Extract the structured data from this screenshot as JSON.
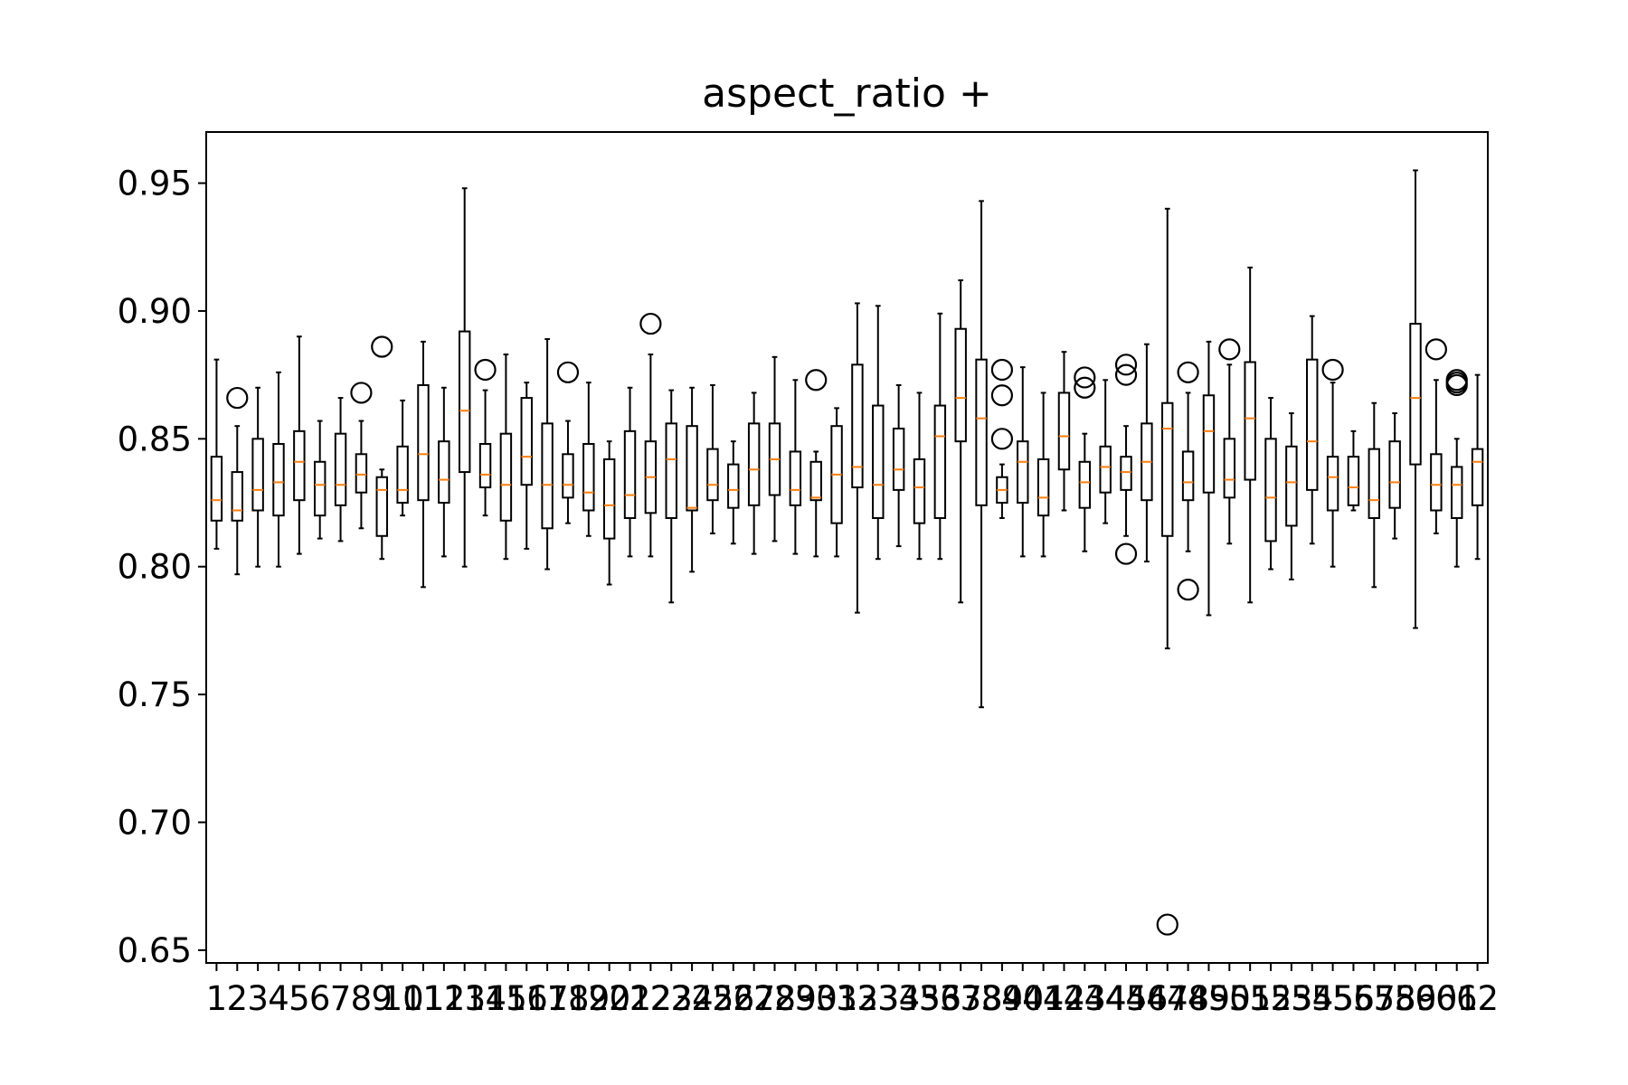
{
  "chart_data": {
    "type": "boxplot",
    "title": "aspect_ratio +",
    "xlabel": "",
    "ylabel": "",
    "ylim": [
      0.645,
      0.97
    ],
    "yticks": [
      0.65,
      0.7,
      0.75,
      0.8,
      0.85,
      0.9,
      0.95
    ],
    "ytick_labels": [
      "0.65",
      "0.70",
      "0.75",
      "0.80",
      "0.85",
      "0.90",
      "0.95"
    ],
    "xticks": [
      1,
      2,
      3,
      4,
      5,
      6,
      7,
      8,
      9,
      10,
      11,
      12,
      13,
      14,
      15,
      16,
      17,
      18,
      19,
      20,
      21,
      22,
      23,
      24,
      25,
      26,
      27,
      28,
      29,
      30,
      31,
      32,
      33,
      34,
      35,
      36,
      37,
      38,
      39,
      40,
      41,
      42,
      43,
      44,
      45,
      46,
      47,
      48,
      49,
      50,
      51,
      52,
      53,
      54,
      55,
      56,
      57,
      58,
      59,
      60,
      61,
      62
    ],
    "xtick_labels": [
      "1",
      "2",
      "3",
      "4",
      "5",
      "6",
      "7",
      "8",
      "9",
      "10",
      "11",
      "12",
      "13",
      "14",
      "15",
      "16",
      "17",
      "18",
      "19",
      "20",
      "21",
      "22",
      "23",
      "24",
      "25",
      "26",
      "27",
      "28",
      "29",
      "30",
      "31",
      "32",
      "33",
      "34",
      "35",
      "36",
      "37",
      "38",
      "39",
      "40",
      "41",
      "42",
      "43",
      "44",
      "45",
      "46",
      "47",
      "48",
      "49",
      "50",
      "51",
      "52",
      "53",
      "54",
      "55",
      "56",
      "57",
      "58",
      "59",
      "60",
      "61",
      "62"
    ],
    "colors": {
      "box": "#000000",
      "median": "#ff7f0e",
      "whisker": "#000000",
      "flier": "#000000",
      "background": "#ffffff"
    },
    "boxes": [
      {
        "x": 1,
        "whislo": 0.807,
        "q1": 0.818,
        "med": 0.826,
        "q3": 0.843,
        "whishi": 0.881,
        "fliers": []
      },
      {
        "x": 2,
        "whislo": 0.797,
        "q1": 0.818,
        "med": 0.822,
        "q3": 0.837,
        "whishi": 0.855,
        "fliers": [
          0.866
        ]
      },
      {
        "x": 3,
        "whislo": 0.8,
        "q1": 0.822,
        "med": 0.83,
        "q3": 0.85,
        "whishi": 0.87,
        "fliers": []
      },
      {
        "x": 4,
        "whislo": 0.8,
        "q1": 0.82,
        "med": 0.833,
        "q3": 0.848,
        "whishi": 0.876,
        "fliers": []
      },
      {
        "x": 5,
        "whislo": 0.805,
        "q1": 0.826,
        "med": 0.841,
        "q3": 0.853,
        "whishi": 0.89,
        "fliers": []
      },
      {
        "x": 6,
        "whislo": 0.811,
        "q1": 0.82,
        "med": 0.832,
        "q3": 0.841,
        "whishi": 0.857,
        "fliers": []
      },
      {
        "x": 7,
        "whislo": 0.81,
        "q1": 0.824,
        "med": 0.832,
        "q3": 0.852,
        "whishi": 0.866,
        "fliers": []
      },
      {
        "x": 8,
        "whislo": 0.815,
        "q1": 0.829,
        "med": 0.836,
        "q3": 0.844,
        "whishi": 0.857,
        "fliers": [
          0.868
        ]
      },
      {
        "x": 9,
        "whislo": 0.803,
        "q1": 0.812,
        "med": 0.83,
        "q3": 0.835,
        "whishi": 0.838,
        "fliers": [
          0.886
        ]
      },
      {
        "x": 10,
        "whislo": 0.82,
        "q1": 0.825,
        "med": 0.83,
        "q3": 0.847,
        "whishi": 0.865,
        "fliers": []
      },
      {
        "x": 11,
        "whislo": 0.792,
        "q1": 0.826,
        "med": 0.844,
        "q3": 0.871,
        "whishi": 0.888,
        "fliers": []
      },
      {
        "x": 12,
        "whislo": 0.804,
        "q1": 0.825,
        "med": 0.834,
        "q3": 0.849,
        "whishi": 0.87,
        "fliers": []
      },
      {
        "x": 13,
        "whislo": 0.8,
        "q1": 0.837,
        "med": 0.861,
        "q3": 0.892,
        "whishi": 0.948,
        "fliers": []
      },
      {
        "x": 14,
        "whislo": 0.82,
        "q1": 0.831,
        "med": 0.836,
        "q3": 0.848,
        "whishi": 0.869,
        "fliers": [
          0.877
        ]
      },
      {
        "x": 15,
        "whislo": 0.803,
        "q1": 0.818,
        "med": 0.832,
        "q3": 0.852,
        "whishi": 0.883,
        "fliers": []
      },
      {
        "x": 16,
        "whislo": 0.807,
        "q1": 0.832,
        "med": 0.843,
        "q3": 0.866,
        "whishi": 0.872,
        "fliers": []
      },
      {
        "x": 17,
        "whislo": 0.799,
        "q1": 0.815,
        "med": 0.832,
        "q3": 0.856,
        "whishi": 0.889,
        "fliers": []
      },
      {
        "x": 18,
        "whislo": 0.817,
        "q1": 0.827,
        "med": 0.832,
        "q3": 0.844,
        "whishi": 0.857,
        "fliers": [
          0.876
        ]
      },
      {
        "x": 19,
        "whislo": 0.812,
        "q1": 0.822,
        "med": 0.829,
        "q3": 0.848,
        "whishi": 0.872,
        "fliers": []
      },
      {
        "x": 20,
        "whislo": 0.793,
        "q1": 0.811,
        "med": 0.824,
        "q3": 0.842,
        "whishi": 0.849,
        "fliers": []
      },
      {
        "x": 21,
        "whislo": 0.804,
        "q1": 0.819,
        "med": 0.828,
        "q3": 0.853,
        "whishi": 0.87,
        "fliers": []
      },
      {
        "x": 22,
        "whislo": 0.804,
        "q1": 0.821,
        "med": 0.835,
        "q3": 0.849,
        "whishi": 0.883,
        "fliers": [
          0.895
        ]
      },
      {
        "x": 23,
        "whislo": 0.786,
        "q1": 0.819,
        "med": 0.842,
        "q3": 0.856,
        "whishi": 0.869,
        "fliers": []
      },
      {
        "x": 24,
        "whislo": 0.798,
        "q1": 0.822,
        "med": 0.823,
        "q3": 0.855,
        "whishi": 0.87,
        "fliers": []
      },
      {
        "x": 25,
        "whislo": 0.813,
        "q1": 0.826,
        "med": 0.832,
        "q3": 0.846,
        "whishi": 0.871,
        "fliers": []
      },
      {
        "x": 26,
        "whislo": 0.809,
        "q1": 0.823,
        "med": 0.83,
        "q3": 0.84,
        "whishi": 0.849,
        "fliers": []
      },
      {
        "x": 27,
        "whislo": 0.805,
        "q1": 0.824,
        "med": 0.838,
        "q3": 0.856,
        "whishi": 0.868,
        "fliers": []
      },
      {
        "x": 28,
        "whislo": 0.81,
        "q1": 0.828,
        "med": 0.842,
        "q3": 0.856,
        "whishi": 0.882,
        "fliers": []
      },
      {
        "x": 29,
        "whislo": 0.805,
        "q1": 0.824,
        "med": 0.83,
        "q3": 0.845,
        "whishi": 0.873,
        "fliers": []
      },
      {
        "x": 30,
        "whislo": 0.804,
        "q1": 0.826,
        "med": 0.827,
        "q3": 0.841,
        "whishi": 0.845,
        "fliers": [
          0.873
        ]
      },
      {
        "x": 31,
        "whislo": 0.804,
        "q1": 0.817,
        "med": 0.836,
        "q3": 0.855,
        "whishi": 0.862,
        "fliers": []
      },
      {
        "x": 32,
        "whislo": 0.782,
        "q1": 0.831,
        "med": 0.839,
        "q3": 0.879,
        "whishi": 0.903,
        "fliers": []
      },
      {
        "x": 33,
        "whislo": 0.803,
        "q1": 0.819,
        "med": 0.832,
        "q3": 0.863,
        "whishi": 0.902,
        "fliers": []
      },
      {
        "x": 34,
        "whislo": 0.808,
        "q1": 0.83,
        "med": 0.838,
        "q3": 0.854,
        "whishi": 0.871,
        "fliers": []
      },
      {
        "x": 35,
        "whislo": 0.803,
        "q1": 0.817,
        "med": 0.831,
        "q3": 0.842,
        "whishi": 0.868,
        "fliers": []
      },
      {
        "x": 36,
        "whislo": 0.803,
        "q1": 0.819,
        "med": 0.851,
        "q3": 0.863,
        "whishi": 0.899,
        "fliers": []
      },
      {
        "x": 37,
        "whislo": 0.786,
        "q1": 0.849,
        "med": 0.866,
        "q3": 0.893,
        "whishi": 0.912,
        "fliers": []
      },
      {
        "x": 38,
        "whislo": 0.745,
        "q1": 0.824,
        "med": 0.858,
        "q3": 0.881,
        "whishi": 0.943,
        "fliers": []
      },
      {
        "x": 39,
        "whislo": 0.819,
        "q1": 0.825,
        "med": 0.83,
        "q3": 0.835,
        "whishi": 0.84,
        "fliers": [
          0.85,
          0.867,
          0.877
        ]
      },
      {
        "x": 40,
        "whislo": 0.804,
        "q1": 0.825,
        "med": 0.841,
        "q3": 0.849,
        "whishi": 0.878,
        "fliers": []
      },
      {
        "x": 41,
        "whislo": 0.804,
        "q1": 0.82,
        "med": 0.827,
        "q3": 0.842,
        "whishi": 0.868,
        "fliers": []
      },
      {
        "x": 42,
        "whislo": 0.822,
        "q1": 0.838,
        "med": 0.851,
        "q3": 0.868,
        "whishi": 0.884,
        "fliers": []
      },
      {
        "x": 43,
        "whislo": 0.806,
        "q1": 0.823,
        "med": 0.833,
        "q3": 0.841,
        "whishi": 0.852,
        "fliers": [
          0.87,
          0.874
        ]
      },
      {
        "x": 44,
        "whislo": 0.817,
        "q1": 0.829,
        "med": 0.839,
        "q3": 0.847,
        "whishi": 0.873,
        "fliers": []
      },
      {
        "x": 45,
        "whislo": 0.812,
        "q1": 0.83,
        "med": 0.837,
        "q3": 0.843,
        "whishi": 0.855,
        "fliers": [
          0.805,
          0.875,
          0.879
        ]
      },
      {
        "x": 46,
        "whislo": 0.802,
        "q1": 0.826,
        "med": 0.841,
        "q3": 0.856,
        "whishi": 0.887,
        "fliers": []
      },
      {
        "x": 47,
        "whislo": 0.768,
        "q1": 0.812,
        "med": 0.854,
        "q3": 0.864,
        "whishi": 0.94,
        "fliers": [
          0.66
        ]
      },
      {
        "x": 48,
        "whislo": 0.806,
        "q1": 0.826,
        "med": 0.833,
        "q3": 0.845,
        "whishi": 0.868,
        "fliers": [
          0.791,
          0.876
        ]
      },
      {
        "x": 49,
        "whislo": 0.781,
        "q1": 0.829,
        "med": 0.853,
        "q3": 0.867,
        "whishi": 0.888,
        "fliers": []
      },
      {
        "x": 50,
        "whislo": 0.809,
        "q1": 0.827,
        "med": 0.834,
        "q3": 0.85,
        "whishi": 0.879,
        "fliers": [
          0.885
        ]
      },
      {
        "x": 51,
        "whislo": 0.786,
        "q1": 0.834,
        "med": 0.858,
        "q3": 0.88,
        "whishi": 0.917,
        "fliers": []
      },
      {
        "x": 52,
        "whislo": 0.799,
        "q1": 0.81,
        "med": 0.827,
        "q3": 0.85,
        "whishi": 0.866,
        "fliers": []
      },
      {
        "x": 53,
        "whislo": 0.795,
        "q1": 0.816,
        "med": 0.833,
        "q3": 0.847,
        "whishi": 0.86,
        "fliers": []
      },
      {
        "x": 54,
        "whislo": 0.809,
        "q1": 0.83,
        "med": 0.849,
        "q3": 0.881,
        "whishi": 0.898,
        "fliers": []
      },
      {
        "x": 55,
        "whislo": 0.8,
        "q1": 0.822,
        "med": 0.835,
        "q3": 0.843,
        "whishi": 0.872,
        "fliers": [
          0.877
        ]
      },
      {
        "x": 56,
        "whislo": 0.822,
        "q1": 0.824,
        "med": 0.831,
        "q3": 0.843,
        "whishi": 0.853,
        "fliers": []
      },
      {
        "x": 57,
        "whislo": 0.792,
        "q1": 0.819,
        "med": 0.826,
        "q3": 0.846,
        "whishi": 0.864,
        "fliers": []
      },
      {
        "x": 58,
        "whislo": 0.811,
        "q1": 0.823,
        "med": 0.833,
        "q3": 0.849,
        "whishi": 0.86,
        "fliers": []
      },
      {
        "x": 59,
        "whislo": 0.776,
        "q1": 0.84,
        "med": 0.866,
        "q3": 0.895,
        "whishi": 0.955,
        "fliers": []
      },
      {
        "x": 60,
        "whislo": 0.813,
        "q1": 0.822,
        "med": 0.832,
        "q3": 0.844,
        "whishi": 0.873,
        "fliers": [
          0.885
        ]
      },
      {
        "x": 61,
        "whislo": 0.8,
        "q1": 0.819,
        "med": 0.832,
        "q3": 0.839,
        "whishi": 0.85,
        "fliers": [
          0.871,
          0.872,
          0.873
        ]
      },
      {
        "x": 62,
        "whislo": 0.803,
        "q1": 0.824,
        "med": 0.841,
        "q3": 0.846,
        "whishi": 0.875,
        "fliers": []
      }
    ]
  }
}
